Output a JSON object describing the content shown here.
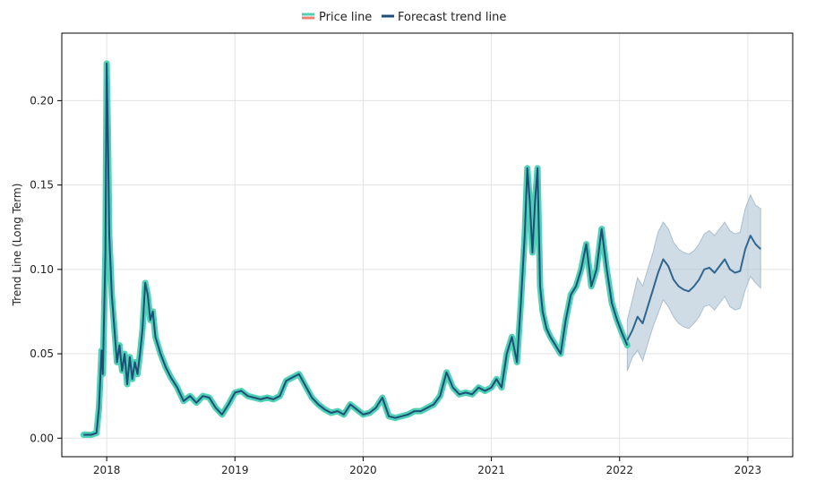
{
  "chart_data": {
    "type": "line",
    "title": "",
    "xlabel": "",
    "ylabel": "Trend Line (Long Term)",
    "xlim": [
      2017.65,
      2023.35
    ],
    "ylim": [
      -0.011,
      0.24
    ],
    "x_ticks": [
      2018,
      2019,
      2020,
      2021,
      2022,
      2023
    ],
    "x_tick_labels": [
      "2018",
      "2019",
      "2020",
      "2021",
      "2022",
      "2023"
    ],
    "y_ticks": [
      0.0,
      0.05,
      0.1,
      0.15,
      0.2
    ],
    "y_tick_labels": [
      "0.00",
      "0.05",
      "0.10",
      "0.15",
      "0.20"
    ],
    "grid": true,
    "legend": {
      "position": "top-center",
      "entries": [
        {
          "label": "Price line",
          "colors": [
            "#4fd1b5",
            "#f08070"
          ]
        },
        {
          "label": "Forecast trend line",
          "color": "#1f4e79"
        }
      ]
    },
    "colors": {
      "price_line": "#4fd1b5",
      "trend_line": "#1f4e79",
      "band": "#a9bfcf",
      "forecast_line": "#2e6690"
    },
    "series": [
      {
        "name": "Price line",
        "x": [
          2017.82,
          2017.88,
          2017.92,
          2017.94,
          2017.96,
          2017.97,
          2017.99,
          2018.0,
          2018.01,
          2018.02,
          2018.04,
          2018.06,
          2018.08,
          2018.1,
          2018.12,
          2018.14,
          2018.16,
          2018.18,
          2018.2,
          2018.22,
          2018.24,
          2018.26,
          2018.28,
          2018.3,
          2018.32,
          2018.34,
          2018.36,
          2018.38,
          2018.42,
          2018.46,
          2018.5,
          2018.55,
          2018.6,
          2018.65,
          2018.7,
          2018.75,
          2018.8,
          2018.85,
          2018.9,
          2018.95,
          2019.0,
          2019.05,
          2019.1,
          2019.15,
          2019.2,
          2019.25,
          2019.3,
          2019.35,
          2019.4,
          2019.45,
          2019.5,
          2019.55,
          2019.6,
          2019.65,
          2019.7,
          2019.75,
          2019.8,
          2019.85,
          2019.9,
          2019.95,
          2020.0,
          2020.05,
          2020.1,
          2020.15,
          2020.2,
          2020.25,
          2020.3,
          2020.35,
          2020.4,
          2020.45,
          2020.5,
          2020.55,
          2020.6,
          2020.65,
          2020.7,
          2020.75,
          2020.8,
          2020.85,
          2020.9,
          2020.95,
          2021.0,
          2021.04,
          2021.08,
          2021.12,
          2021.16,
          2021.2,
          2021.23,
          2021.26,
          2021.28,
          2021.3,
          2021.32,
          2021.34,
          2021.36,
          2021.38,
          2021.4,
          2021.43,
          2021.46,
          2021.5,
          2021.54,
          2021.58,
          2021.62,
          2021.66,
          2021.7,
          2021.74,
          2021.78,
          2021.82,
          2021.86,
          2021.9,
          2021.94,
          2021.98,
          2022.02,
          2022.06
        ],
        "y": [
          0.002,
          0.002,
          0.003,
          0.018,
          0.052,
          0.038,
          0.11,
          0.222,
          0.18,
          0.12,
          0.085,
          0.065,
          0.045,
          0.055,
          0.04,
          0.05,
          0.032,
          0.048,
          0.035,
          0.045,
          0.038,
          0.05,
          0.065,
          0.092,
          0.085,
          0.07,
          0.075,
          0.06,
          0.05,
          0.042,
          0.036,
          0.03,
          0.022,
          0.025,
          0.021,
          0.025,
          0.024,
          0.018,
          0.014,
          0.02,
          0.027,
          0.028,
          0.025,
          0.024,
          0.023,
          0.024,
          0.023,
          0.025,
          0.034,
          0.036,
          0.038,
          0.031,
          0.024,
          0.02,
          0.017,
          0.015,
          0.016,
          0.014,
          0.02,
          0.017,
          0.014,
          0.015,
          0.018,
          0.024,
          0.013,
          0.012,
          0.013,
          0.014,
          0.016,
          0.016,
          0.018,
          0.02,
          0.025,
          0.039,
          0.03,
          0.026,
          0.027,
          0.026,
          0.03,
          0.028,
          0.03,
          0.035,
          0.03,
          0.05,
          0.06,
          0.045,
          0.08,
          0.12,
          0.16,
          0.14,
          0.11,
          0.14,
          0.16,
          0.09,
          0.075,
          0.065,
          0.06,
          0.055,
          0.05,
          0.07,
          0.085,
          0.09,
          0.1,
          0.115,
          0.09,
          0.1,
          0.124,
          0.1,
          0.08,
          0.07,
          0.062,
          0.055
        ]
      },
      {
        "name": "Forecast trend line",
        "x": [
          2022.06,
          2022.1,
          2022.14,
          2022.18,
          2022.22,
          2022.26,
          2022.3,
          2022.34,
          2022.38,
          2022.42,
          2022.46,
          2022.5,
          2022.54,
          2022.58,
          2022.62,
          2022.66,
          2022.7,
          2022.74,
          2022.78,
          2022.82,
          2022.86,
          2022.9,
          2022.94,
          2022.98,
          2023.02,
          2023.06,
          2023.1
        ],
        "y": [
          0.058,
          0.064,
          0.072,
          0.068,
          0.078,
          0.088,
          0.098,
          0.106,
          0.102,
          0.094,
          0.09,
          0.088,
          0.087,
          0.09,
          0.094,
          0.1,
          0.101,
          0.098,
          0.102,
          0.106,
          0.1,
          0.098,
          0.099,
          0.112,
          0.12,
          0.115,
          0.112
        ]
      },
      {
        "name": "Forecast upper bound",
        "x": [
          2022.06,
          2022.1,
          2022.14,
          2022.18,
          2022.22,
          2022.26,
          2022.3,
          2022.34,
          2022.38,
          2022.42,
          2022.46,
          2022.5,
          2022.54,
          2022.58,
          2022.62,
          2022.66,
          2022.7,
          2022.74,
          2022.78,
          2022.82,
          2022.86,
          2022.9,
          2022.94,
          2022.98,
          2023.02,
          2023.06,
          2023.1
        ],
        "y": [
          0.07,
          0.082,
          0.095,
          0.09,
          0.1,
          0.11,
          0.122,
          0.128,
          0.124,
          0.116,
          0.112,
          0.11,
          0.109,
          0.111,
          0.115,
          0.121,
          0.123,
          0.12,
          0.124,
          0.128,
          0.123,
          0.121,
          0.122,
          0.136,
          0.144,
          0.138,
          0.136
        ]
      },
      {
        "name": "Forecast lower bound",
        "x": [
          2022.06,
          2022.1,
          2022.14,
          2022.18,
          2022.22,
          2022.26,
          2022.3,
          2022.34,
          2022.38,
          2022.42,
          2022.46,
          2022.5,
          2022.54,
          2022.58,
          2022.62,
          2022.66,
          2022.7,
          2022.74,
          2022.78,
          2022.82,
          2022.86,
          2022.9,
          2022.94,
          2022.98,
          2023.02,
          2023.06,
          2023.1
        ],
        "y": [
          0.04,
          0.048,
          0.052,
          0.046,
          0.056,
          0.066,
          0.074,
          0.082,
          0.078,
          0.072,
          0.068,
          0.066,
          0.065,
          0.068,
          0.072,
          0.078,
          0.079,
          0.076,
          0.08,
          0.084,
          0.078,
          0.076,
          0.077,
          0.088,
          0.096,
          0.092,
          0.089
        ]
      }
    ]
  }
}
